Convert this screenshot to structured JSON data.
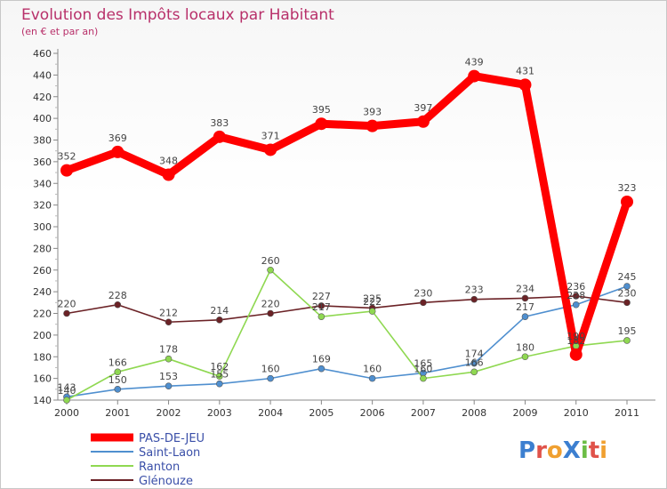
{
  "chart_data": {
    "type": "line",
    "title": "Evolution des Impôts locaux par Habitant",
    "subtitle": "(en € et par an)",
    "xlabel": "",
    "ylabel": "",
    "categories": [
      "2000",
      "2001",
      "2002",
      "2003",
      "2004",
      "2005",
      "2006",
      "2007",
      "2008",
      "2009",
      "2010",
      "2011"
    ],
    "ylim": [
      140,
      460
    ],
    "ytick_step": 20,
    "grid": false,
    "legend_position": "bottom-left",
    "series": [
      {
        "name": "PAS-DE-JEU",
        "color": "#ff0000",
        "values": [
          352,
          369,
          348,
          383,
          371,
          395,
          393,
          397,
          439,
          431,
          182,
          323
        ],
        "labels": [
          "352",
          "369",
          "348",
          "383",
          "371",
          "395",
          "393",
          "397",
          "439",
          "431",
          "182",
          "323"
        ]
      },
      {
        "name": "Saint-Laon",
        "color": "#4f8fcf",
        "values": [
          143,
          150,
          153,
          155,
          160,
          169,
          160,
          165,
          174,
          217,
          228,
          245
        ],
        "labels": [
          "143",
          "150",
          "153",
          "155",
          "160",
          "169",
          "160",
          "165",
          "174",
          "217",
          "228",
          "245"
        ]
      },
      {
        "name": "Ranton",
        "color": "#8fd851",
        "values": [
          140,
          166,
          178,
          162,
          260,
          217,
          222,
          160,
          166,
          180,
          190,
          195
        ],
        "labels": [
          "140",
          "166",
          "178",
          "162",
          "260",
          "217",
          "222",
          "160",
          "166",
          "180",
          "190",
          "195"
        ]
      },
      {
        "name": "Glénouze",
        "color": "#6b2226",
        "values": [
          220,
          228,
          212,
          214,
          220,
          227,
          225,
          230,
          233,
          234,
          236,
          230
        ],
        "labels": [
          "220",
          "228",
          "212",
          "214",
          "220",
          "227",
          "225",
          "230",
          "233",
          "234",
          "236",
          "230"
        ]
      }
    ]
  },
  "logo": {
    "text": "ProXiti"
  }
}
